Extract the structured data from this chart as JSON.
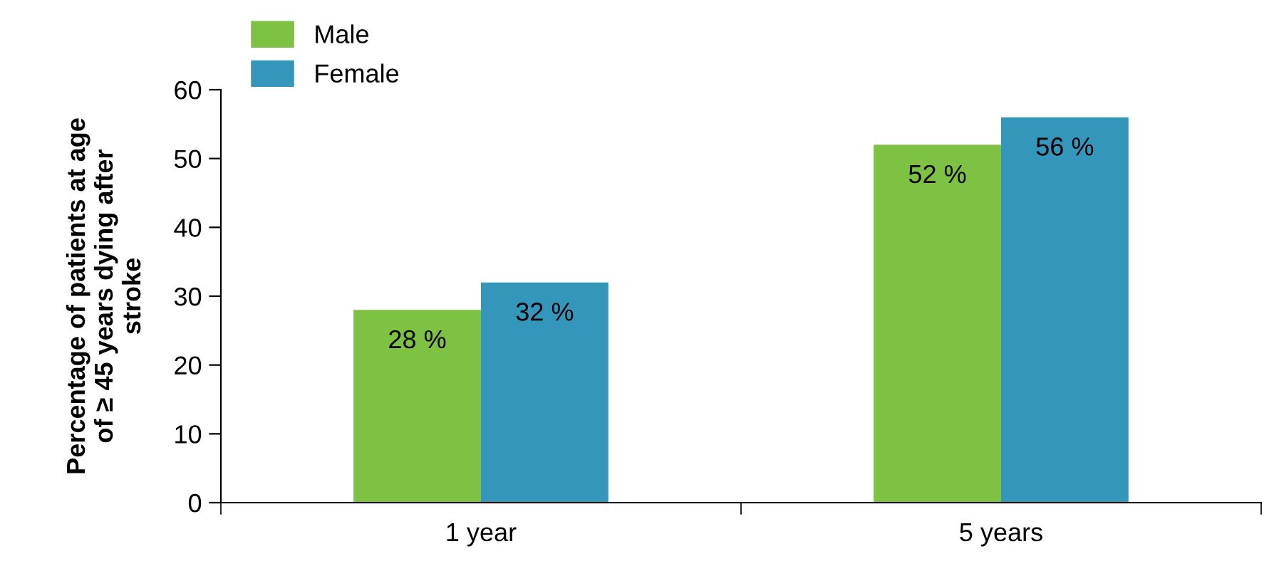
{
  "chart_data": {
    "type": "bar",
    "ylabel": "Percentage of patients at age\nof ≥ 45 years dying after\nstroke",
    "categories": [
      "1 year",
      "5 years"
    ],
    "series": [
      {
        "name": "Male",
        "color": "#7dc242",
        "values": [
          28,
          52
        ],
        "value_labels": [
          "28 %",
          "52 %"
        ]
      },
      {
        "name": "Female",
        "color": "#3596bb",
        "values": [
          32,
          56
        ],
        "value_labels": [
          "32 %",
          "56 %"
        ]
      }
    ],
    "ylim": [
      0,
      60
    ],
    "yticks": [
      0,
      10,
      20,
      30,
      40,
      50,
      60
    ],
    "grid": false,
    "legend": "top left"
  }
}
